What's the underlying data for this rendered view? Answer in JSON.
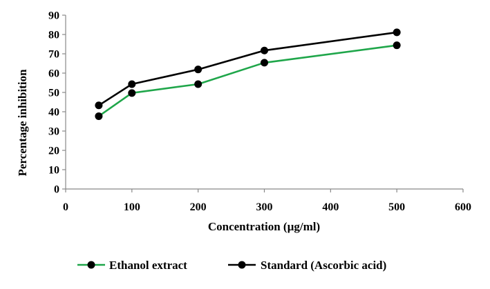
{
  "chart_data": {
    "type": "line",
    "title": "",
    "xlabel": "Concentration (µg/ml)",
    "ylabel": "Percentage inhibition",
    "xlim": [
      0,
      600
    ],
    "ylim": [
      0,
      90
    ],
    "xticks": [
      0,
      100,
      200,
      300,
      400,
      500,
      600
    ],
    "yticks": [
      0,
      10,
      20,
      30,
      40,
      50,
      60,
      70,
      80,
      90
    ],
    "grid": false,
    "legend_position": "bottom",
    "series": [
      {
        "name": "Ethanol extract",
        "color": "#1fa64a",
        "marker_color": "#000000",
        "x": [
          50,
          100,
          200,
          300,
          500
        ],
        "y": [
          37.7,
          49.7,
          54.3,
          65.4,
          74.4
        ]
      },
      {
        "name": "Standard (Ascorbic acid)",
        "color": "#000000",
        "marker_color": "#000000",
        "x": [
          50,
          100,
          200,
          300,
          500
        ],
        "y": [
          43.3,
          54.3,
          61.9,
          71.7,
          81.1
        ]
      }
    ]
  }
}
